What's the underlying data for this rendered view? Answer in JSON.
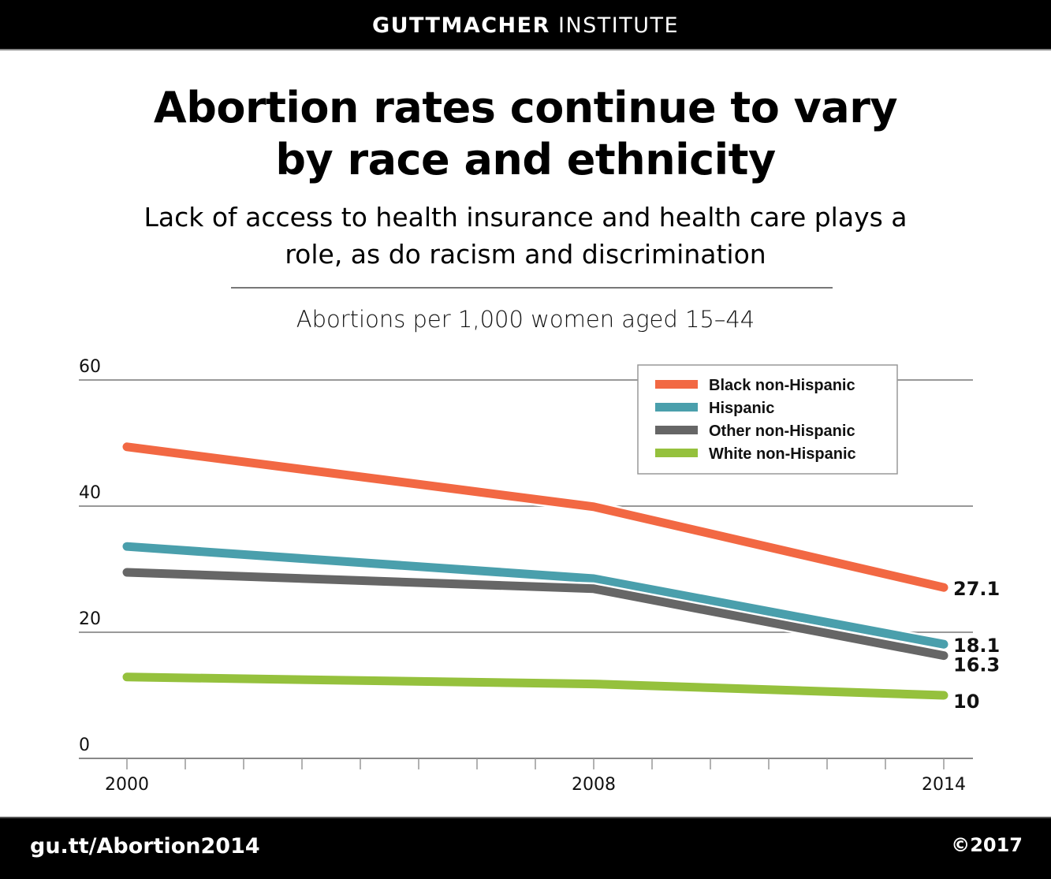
{
  "header": {
    "brand_bold": "GUTTMACHER",
    "brand_regular": "INSTITUTE"
  },
  "headline": {
    "line1": "Abortion rates continue to vary",
    "line2": "by race and ethnicity"
  },
  "subheadline": {
    "line1": "Lack of access to health insurance and health care plays a",
    "line2": "role, as do racism and discrimination"
  },
  "footer": {
    "url": "gu.tt/Abortion2014",
    "copyright": "©2017"
  },
  "chart_data": {
    "type": "line",
    "title": "Abortions per 1,000 women aged 15–44",
    "xlabel": "",
    "ylabel": "Abortions per 1,000 women aged 15–44",
    "x": [
      2000,
      2008,
      2014
    ],
    "xlim": [
      2000,
      2014
    ],
    "x_minor_ticks_every": 1,
    "x_tick_labels": [
      "2000",
      "2008",
      "2014"
    ],
    "ylim": [
      0,
      60
    ],
    "y_ticks": [
      0,
      20,
      40,
      60
    ],
    "y_tick_labels": [
      "0",
      "20",
      "40",
      "60"
    ],
    "grid": true,
    "legend_position": "top-right",
    "series": [
      {
        "name": "Black non-Hispanic",
        "color": "#f26843",
        "values": [
          49.4,
          39.9,
          27.1
        ],
        "end_label": "27.1"
      },
      {
        "name": "Hispanic",
        "color": "#4a9fac",
        "values": [
          33.6,
          28.5,
          18.1
        ],
        "end_label": "18.1"
      },
      {
        "name": "Other non-Hispanic",
        "color": "#666666",
        "values": [
          29.5,
          26.9,
          16.3
        ],
        "end_label": "16.3"
      },
      {
        "name": "White non-Hispanic",
        "color": "#95c13d",
        "values": [
          12.9,
          11.8,
          10
        ],
        "end_label": "10"
      }
    ]
  }
}
